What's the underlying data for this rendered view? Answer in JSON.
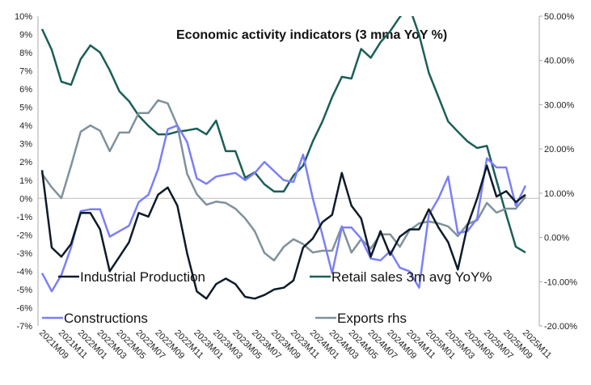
{
  "chart_data": {
    "type": "line",
    "title": "Economic activity indicators (3 mma YoY %)",
    "left_axis": {
      "ylim": [
        -7,
        10
      ],
      "ticks": [
        "10%",
        "9%",
        "8%",
        "7%",
        "6%",
        "5%",
        "4%",
        "3%",
        "2%",
        "1%",
        "0%",
        "-1%",
        "-2%",
        "-3%",
        "-4%",
        "-5%",
        "-6%",
        "-7%"
      ]
    },
    "right_axis": {
      "ylim": [
        -20,
        50
      ],
      "ticks": [
        "50.00%",
        "40.00%",
        "30.00%",
        "20.00%",
        "10.00%",
        "0.00%",
        "-10.00%",
        "-20.00%"
      ]
    },
    "x_tick_labels": [
      "2021M09",
      "2021M11",
      "2022M01",
      "2022M03",
      "2022M05",
      "2022M07",
      "2022M09",
      "2022M11",
      "2023M01",
      "2023M03",
      "2023M05",
      "2023M07",
      "2023M09",
      "2023M11",
      "2024M01",
      "2024M03",
      "2024M05",
      "2024M07",
      "2024M09",
      "2024M11",
      "2025M01",
      "2025M03",
      "2025M05",
      "2025M07",
      "2025M09",
      "2025M11"
    ],
    "legend_placement": "inside-bottom",
    "series": [
      {
        "name": "Industrial Production",
        "axis": "left",
        "color": "#0d1b2a",
        "values": [
          1.55,
          -2.7,
          -3.2,
          -2.5,
          -0.8,
          -0.8,
          -1.7,
          -4.0,
          -3.2,
          -2.4,
          -0.8,
          -1.0,
          0.2,
          0.6,
          -0.4,
          -3.0,
          -5.1,
          -5.5,
          -4.7,
          -4.4,
          -4.7,
          -5.4,
          -5.5,
          -5.3,
          -5.0,
          -4.9,
          -4.5,
          -2.7,
          -2.2,
          -1.3,
          -0.9,
          1.4,
          -0.4,
          -1.1,
          -3.2,
          -1.8,
          -3.1,
          -2.1,
          -1.7,
          -1.7,
          -0.6,
          -1.6,
          -2.4,
          -3.9,
          -1.5,
          0.0,
          1.8,
          0.1,
          0.4,
          -0.2,
          0.2
        ]
      },
      {
        "name": "Retail sales 3m avg YoY%",
        "axis": "right",
        "color": "#1b5e58",
        "values": [
          47.1,
          42.4,
          35.2,
          34.5,
          40.3,
          43.4,
          41.8,
          37.8,
          33.0,
          30.8,
          27.5,
          25.2,
          23.3,
          23.3,
          23.9,
          24.2,
          24.6,
          23.3,
          26.4,
          19.5,
          19.5,
          13.5,
          14.7,
          12.0,
          10.4,
          10.4,
          14.0,
          16.2,
          21.7,
          26.2,
          31.7,
          36.3,
          35.9,
          42.6,
          40.6,
          44.1,
          46.6,
          49.8,
          52.0,
          45.8,
          37.2,
          31.7,
          26.2,
          23.9,
          21.7,
          20.2,
          20.7,
          12.9,
          5.2,
          -2.1,
          -3.4
        ]
      },
      {
        "name": "Constructions",
        "axis": "left",
        "color": "#7b7ff7",
        "values": [
          -4.1,
          -5.1,
          -4.2,
          -2.7,
          -0.7,
          -0.6,
          -0.6,
          -2.1,
          -1.8,
          -1.5,
          -0.2,
          0.2,
          1.6,
          3.8,
          4.0,
          3.1,
          1.1,
          0.8,
          1.2,
          1.3,
          1.4,
          1.0,
          1.4,
          2.0,
          1.5,
          1.0,
          0.9,
          2.4,
          0.0,
          -2.0,
          -4.1,
          -1.6,
          -1.6,
          -2.2,
          -3.3,
          -3.4,
          -2.9,
          -3.8,
          -4.0,
          -4.9,
          -0.9,
          0.0,
          1.2,
          -1.9,
          -1.8,
          -1.1,
          2.2,
          1.7,
          1.7,
          -0.4,
          0.7
        ]
      },
      {
        "name": "Exports rhs",
        "axis": "right",
        "color": "#7f919c",
        "values": [
          14.4,
          11.3,
          8.9,
          16.2,
          23.9,
          25.3,
          24.1,
          19.5,
          23.7,
          23.7,
          28.1,
          28.1,
          31.0,
          30.3,
          25.3,
          14.4,
          9.8,
          7.4,
          8.1,
          7.8,
          6.5,
          4.3,
          1.4,
          -3.5,
          -5.2,
          -2.1,
          -0.4,
          -1.5,
          -3.4,
          -3.0,
          -3.0,
          2.5,
          -3.4,
          -0.4,
          -2.5,
          0.7,
          0.7,
          -2.1,
          1.6,
          3.2,
          3.6,
          3.2,
          2.5,
          0.3,
          3.0,
          3.9,
          7.8,
          5.6,
          6.5,
          6.5,
          9.2
        ]
      }
    ]
  }
}
